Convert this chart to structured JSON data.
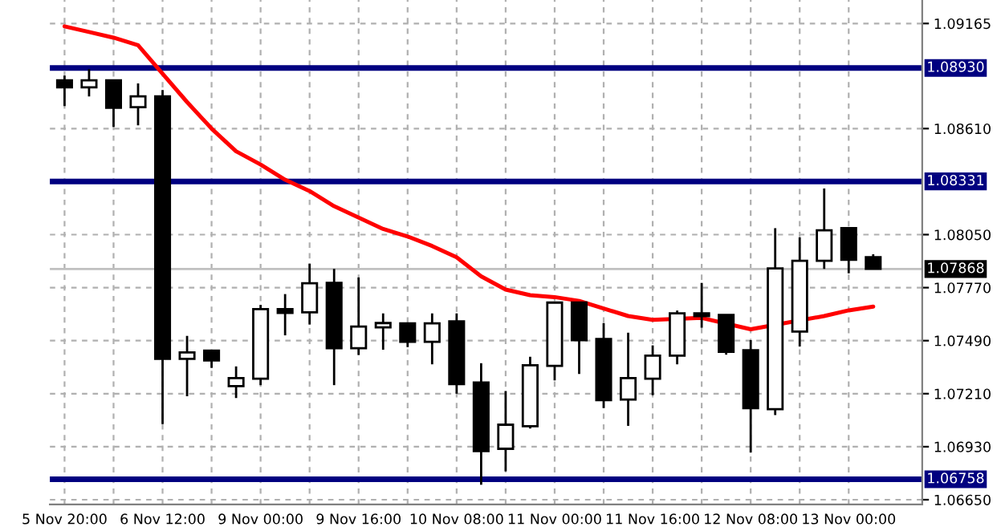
{
  "chart_data": {
    "type": "candlestick",
    "categories": [
      "5 Nov 20:00",
      null,
      null,
      null,
      "6 Nov 12:00",
      null,
      null,
      null,
      "9 Nov 00:00",
      null,
      null,
      null,
      "9 Nov 16:00",
      null,
      null,
      null,
      "10 Nov 08:00",
      null,
      null,
      null,
      "11 Nov 00:00",
      null,
      null,
      null,
      "11 Nov 16:00",
      null,
      null,
      null,
      "12 Nov 08:00",
      null,
      null,
      null,
      "13 Nov 00:00",
      null
    ],
    "ohlc": [
      [
        1.08865,
        1.0889,
        1.08729,
        1.08828
      ],
      [
        1.08828,
        1.08924,
        1.0878,
        1.08865
      ],
      [
        1.08865,
        1.08865,
        1.08619,
        1.0872
      ],
      [
        1.08723,
        1.08848,
        1.08627,
        1.0878
      ],
      [
        1.0878,
        1.08814,
        1.07049,
        1.07394
      ],
      [
        1.07394,
        1.07515,
        1.07196,
        1.07428
      ],
      [
        1.07437,
        1.07437,
        1.07346,
        1.07386
      ],
      [
        1.0725,
        1.07354,
        1.07187,
        1.07292
      ],
      [
        1.07289,
        1.07679,
        1.07255,
        1.07657
      ],
      [
        1.07657,
        1.07736,
        1.07518,
        1.07637
      ],
      [
        1.0764,
        1.07897,
        1.07575,
        1.07793
      ],
      [
        1.07795,
        1.07869,
        1.07255,
        1.0745
      ],
      [
        1.0745,
        1.07824,
        1.07414,
        1.07564
      ],
      [
        1.0756,
        1.07634,
        1.07442,
        1.07583
      ],
      [
        1.07581,
        1.07581,
        1.07456,
        1.07484
      ],
      [
        1.07484,
        1.07634,
        1.07365,
        1.07581
      ],
      [
        1.07592,
        1.07634,
        1.0721,
        1.07261
      ],
      [
        1.07269,
        1.07371,
        1.06729,
        1.06907
      ],
      [
        1.06919,
        1.07224,
        1.068,
        1.07046
      ],
      [
        1.07038,
        1.07405,
        1.07026,
        1.0736
      ],
      [
        1.07357,
        1.07691,
        1.0728,
        1.07691
      ],
      [
        1.07691,
        1.07691,
        1.07314,
        1.07493
      ],
      [
        1.07499,
        1.07583,
        1.07134,
        1.07176
      ],
      [
        1.07179,
        1.07532,
        1.0704,
        1.07292
      ],
      [
        1.07289,
        1.07465,
        1.07202,
        1.07411
      ],
      [
        1.07411,
        1.07649,
        1.07365,
        1.07634
      ],
      [
        1.07634,
        1.07795,
        1.07558,
        1.0762
      ],
      [
        1.07626,
        1.07626,
        1.07416,
        1.07431
      ],
      [
        1.07439,
        1.07493,
        1.06899,
        1.07134
      ],
      [
        1.07128,
        1.08084,
        1.07097,
        1.07872
      ],
      [
        1.07538,
        1.08036,
        1.07459,
        1.07912
      ],
      [
        1.07912,
        1.08294,
        1.07869,
        1.08073
      ],
      [
        1.08084,
        1.08084,
        1.07846,
        1.07917
      ],
      [
        1.07931,
        1.07946,
        1.07869,
        1.07869
      ]
    ],
    "series": [
      {
        "type": "line",
        "color": "#ff0000",
        "values": [
          1.0915,
          1.0912,
          1.0909,
          1.0905,
          1.089,
          1.0875,
          1.0861,
          1.0849,
          1.0842,
          1.0834,
          1.0828,
          1.082,
          1.0814,
          1.0808,
          1.0804,
          1.0799,
          1.0793,
          1.0783,
          1.0776,
          1.0773,
          1.0772,
          1.077,
          1.0766,
          1.0762,
          1.076,
          null,
          1.0761,
          null,
          1.0755,
          null,
          null,
          1.0762,
          1.0765,
          1.0767
        ]
      }
    ],
    "ylim": [
      1.06625,
      1.09289
    ],
    "yticks": [
      {
        "value": 1.0665,
        "label": "1.06650"
      },
      {
        "value": 1.0693,
        "label": "1.06930"
      },
      {
        "value": 1.0721,
        "label": "1.07210"
      },
      {
        "value": 1.0749,
        "label": "1.07490"
      },
      {
        "value": 1.0777,
        "label": "1.07770"
      },
      {
        "value": 1.0805,
        "label": "1.08050"
      },
      {
        "value": 1.0861,
        "label": "1.08610"
      },
      1.09165
    ],
    "ref_lines": [
      {
        "axis": "y",
        "value": 1.0893,
        "label": "1.08930",
        "color": "#000080"
      },
      {
        "axis": "y",
        "value": 1.08331,
        "label": "1.08331",
        "color": "#000080"
      },
      {
        "axis": "y",
        "value": 1.06758,
        "label": "1.06758",
        "color": "#000080"
      },
      {
        "axis": "y",
        "value": 1.07868,
        "label": "1.07868",
        "color": "#c0c0c0"
      }
    ],
    "grid": true,
    "legend": false,
    "marker": "none",
    "line_style": "solid"
  }
}
